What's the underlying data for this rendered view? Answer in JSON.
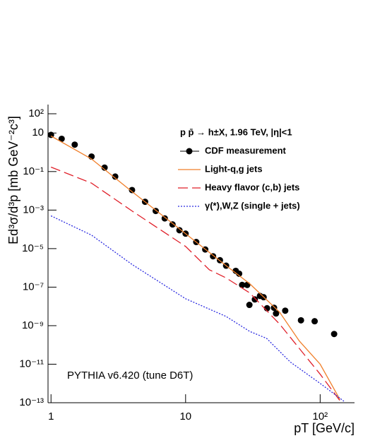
{
  "chart_data": {
    "type": "line",
    "log_x": true,
    "log_y": true,
    "title": "p p̄ → h±X, 1.96 TeV, |η|<1",
    "y_label": "Ed³σ/d³p [mb GeV⁻²c³]",
    "x_label": "pT [GeV/c]",
    "annotation": "PYTHIA v6.420 (tune D6T)",
    "xlim": [
      0.95,
      180
    ],
    "ylim": [
      1e-13,
      300
    ],
    "xticks": [
      1,
      10,
      {
        "value": 100,
        "label": "10²"
      }
    ],
    "yticks": [
      {
        "value": 1e-13,
        "label": "10⁻¹³"
      },
      {
        "value": 1e-11,
        "label": "10⁻¹¹"
      },
      {
        "value": 1e-09,
        "label": "10⁻⁹"
      },
      {
        "value": 1e-07,
        "label": "10⁻⁷"
      },
      {
        "value": 1e-05,
        "label": "10⁻⁵"
      },
      {
        "value": 0.001,
        "label": "10⁻³"
      },
      {
        "value": 0.1,
        "label": "10⁻¹"
      },
      10,
      {
        "value": 100,
        "label": "10²"
      }
    ],
    "series": [
      {
        "name": "CDF measurement",
        "style": "points",
        "color": "#000000",
        "x": [
          1.0,
          1.2,
          1.5,
          2.0,
          2.5,
          3.0,
          4.0,
          5.0,
          6.0,
          7.0,
          8.0,
          9.0,
          10,
          12,
          14,
          16,
          18,
          20,
          23.6,
          25,
          26.3,
          28.7,
          29.8,
          32.7,
          35.7,
          38,
          40.3,
          45.4,
          47,
          55,
          72,
          91,
          127
        ],
        "values": [
          8,
          5,
          2.5,
          0.6,
          0.16,
          0.055,
          0.011,
          0.0027,
          0.0009,
          0.00037,
          0.00018,
          9e-05,
          6e-05,
          2.2e-05,
          9e-06,
          4e-06,
          2.5e-06,
          1.3e-06,
          7e-07,
          5e-07,
          1.3e-07,
          1.3e-07,
          1.2e-08,
          2.3e-08,
          3.5e-08,
          3e-08,
          8e-09,
          8.5e-09,
          4.3e-09,
          6e-09,
          1.9e-09,
          1.7e-09,
          3.7e-10
        ]
      },
      {
        "name": "Light-q,g jets",
        "style": "solid",
        "color": "#f07f2a",
        "x": [
          1,
          2,
          4,
          10,
          20,
          30,
          50,
          70,
          100,
          140
        ],
        "values": [
          7,
          0.45,
          0.009,
          6e-05,
          1.3e-06,
          1.5e-07,
          5e-09,
          1.6e-10,
          1e-11,
          1.5e-13
        ]
      },
      {
        "name": "Heavy flavor (c,b) jets",
        "style": "dashed",
        "color": "#e0202a",
        "x": [
          1,
          2,
          4,
          10,
          15,
          20,
          30,
          50,
          100,
          140
        ],
        "values": [
          0.17,
          0.025,
          0.0009,
          1.3e-05,
          8e-07,
          3e-07,
          5e-08,
          1.2e-09,
          3e-12,
          1.3e-13
        ]
      },
      {
        "name": "γ(*),W,Z (single + jets)",
        "style": "dotted",
        "color": "#2a2ae0",
        "x": [
          1,
          2,
          4,
          10,
          20,
          30,
          40,
          60,
          100,
          150
        ],
        "values": [
          0.0005,
          5e-05,
          1.5e-06,
          2.5e-08,
          3e-09,
          5e-10,
          2.2e-10,
          1.3e-11,
          1e-12,
          1.2e-13
        ]
      }
    ]
  }
}
